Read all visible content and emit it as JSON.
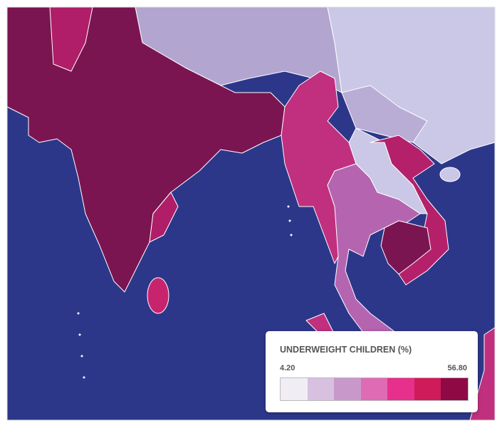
{
  "legend": {
    "title": "UNDERWEIGHT CHILDREN (%)",
    "min_label": "4.20",
    "max_label": "56.80",
    "colors": [
      "#f1edf5",
      "#d7c0e0",
      "#c998ca",
      "#de6bb3",
      "#e6308c",
      "#cf1b5a",
      "#8f0a45"
    ]
  }
}
